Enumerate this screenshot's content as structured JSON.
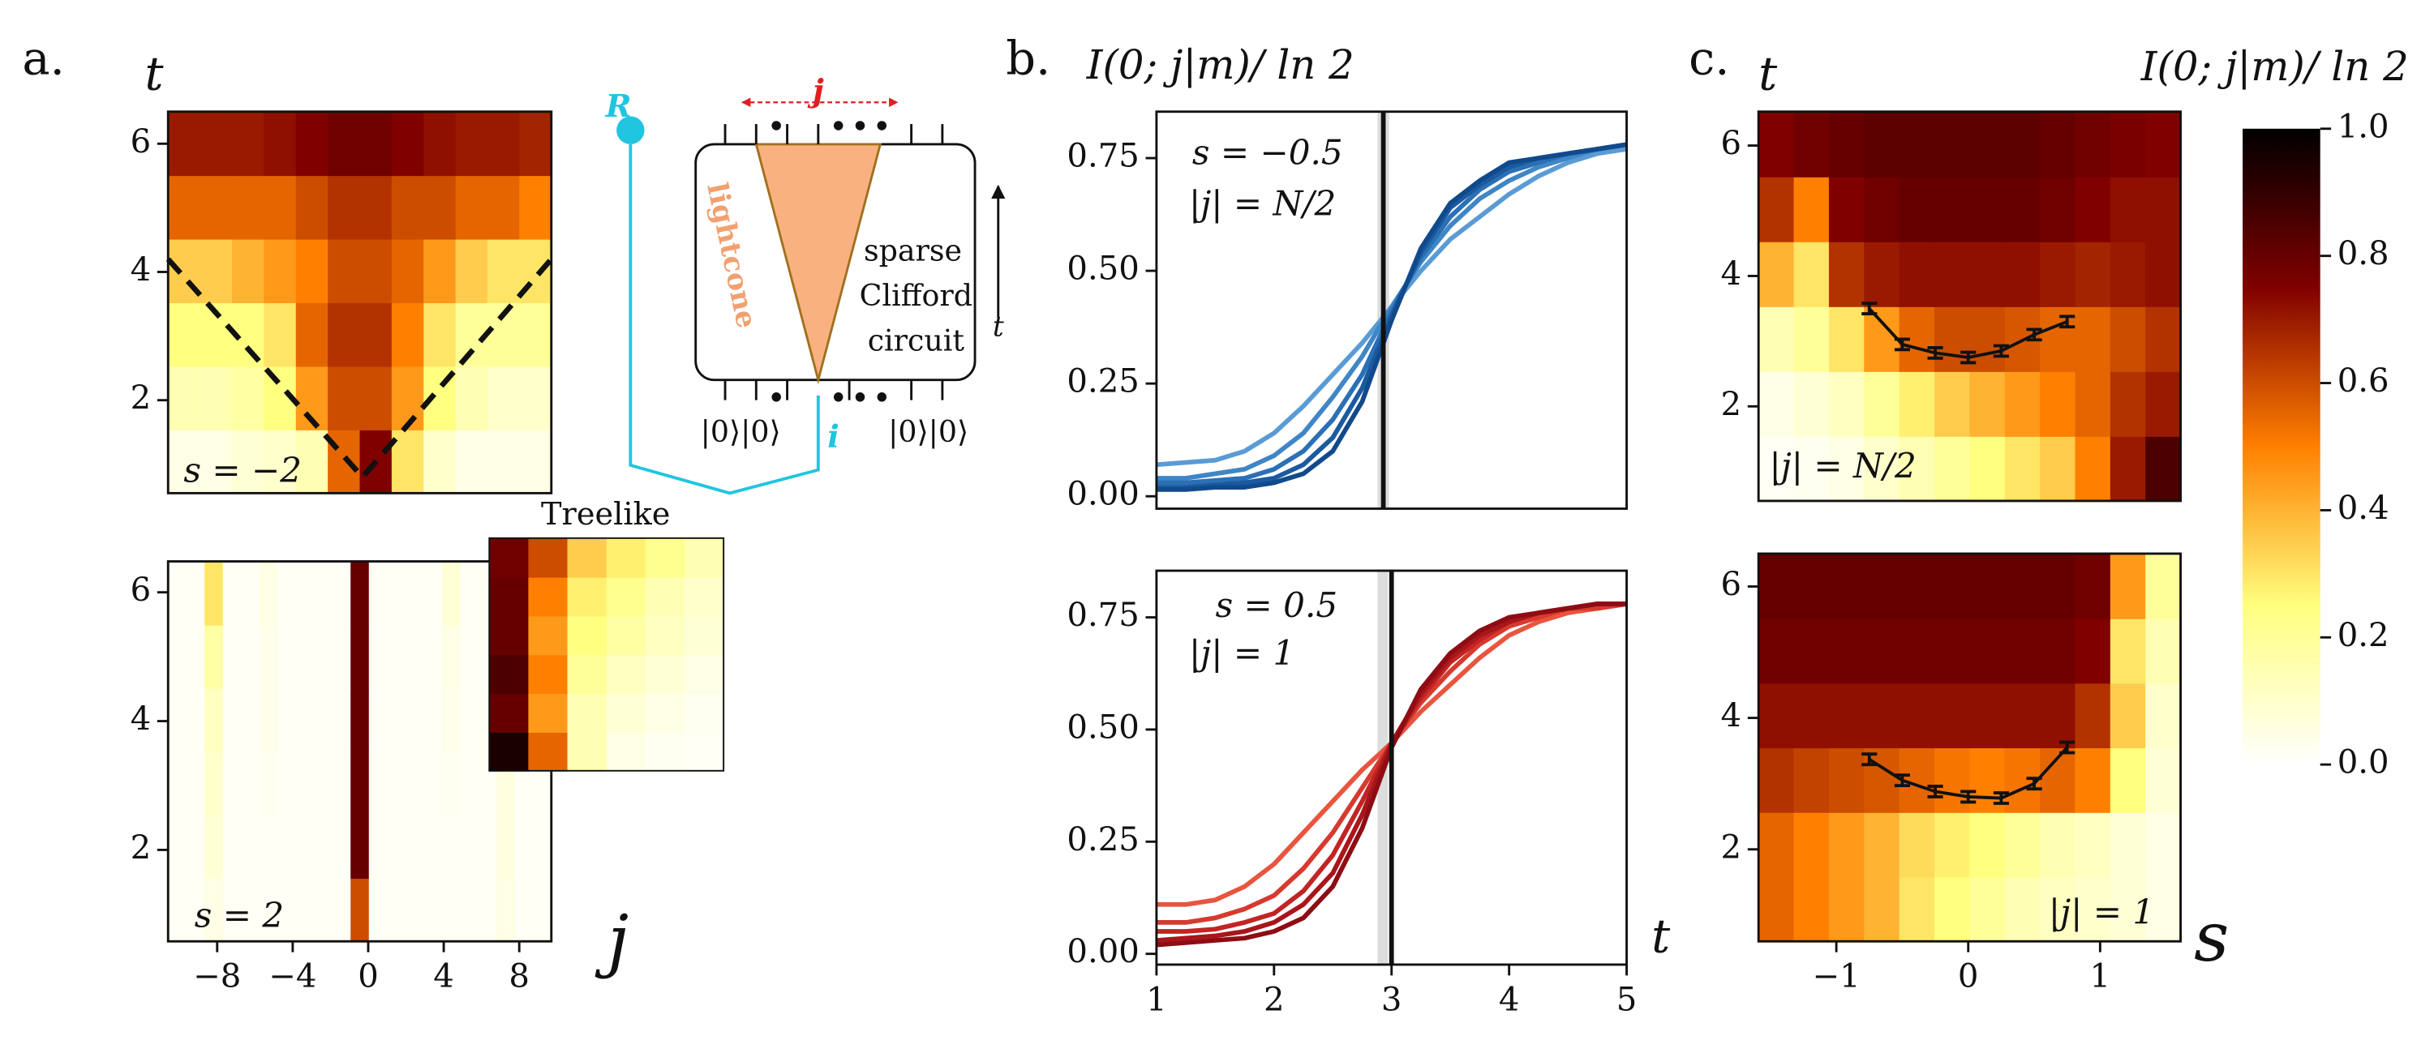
{
  "chart_data": [
    {
      "type": "heatmap",
      "panel_label": "a.",
      "ylabel": "t",
      "annotations": [
        "s = −2"
      ],
      "colormap": "afmhot_r",
      "xlim": [
        -10.6,
        9.7
      ],
      "ylim": [
        0.55,
        6.5
      ],
      "yticks": [
        2,
        4,
        6
      ],
      "values": [
        [
          0.05,
          0.05,
          0.08,
          0.1,
          0.15,
          0.55,
          0.75,
          0.3,
          0.1,
          0.05,
          0.05,
          0.05
        ],
        [
          0.15,
          0.15,
          0.18,
          0.25,
          0.45,
          0.6,
          0.6,
          0.45,
          0.25,
          0.15,
          0.1,
          0.1
        ],
        [
          0.25,
          0.25,
          0.25,
          0.3,
          0.55,
          0.65,
          0.65,
          0.5,
          0.3,
          0.2,
          0.2,
          0.2
        ],
        [
          0.35,
          0.35,
          0.4,
          0.45,
          0.5,
          0.6,
          0.6,
          0.55,
          0.45,
          0.35,
          0.3,
          0.3
        ],
        [
          0.55,
          0.55,
          0.55,
          0.55,
          0.6,
          0.65,
          0.65,
          0.6,
          0.6,
          0.55,
          0.55,
          0.5
        ],
        [
          0.7,
          0.7,
          0.7,
          0.72,
          0.75,
          0.78,
          0.78,
          0.75,
          0.72,
          0.7,
          0.7,
          0.68
        ]
      ],
      "lightcone": {
        "x": [
          -10.6,
          -0.3,
          9.7
        ],
        "t": [
          4.2,
          0.8,
          4.2
        ]
      }
    },
    {
      "type": "heatmap",
      "annotations": [
        "s = 2"
      ],
      "xlabel": "j",
      "colormap": "afmhot_r",
      "xlim": [
        -10.6,
        9.7
      ],
      "ylim": [
        0.58,
        6.48
      ],
      "yticks": [
        2,
        4,
        6
      ],
      "xticks": [
        {
          "value": -8,
          "label": "−8"
        },
        {
          "value": -4,
          "label": "−4"
        },
        0,
        4,
        8
      ],
      "values": [
        [
          0.02,
          0.02,
          0.05,
          0.02,
          0.02,
          0.02,
          0.02,
          0.02,
          0.02,
          0.02,
          0.6,
          0.02,
          0.02,
          0.02,
          0.02,
          0.02,
          0.02,
          0.02,
          0.05,
          0.02,
          0.02
        ],
        [
          0.02,
          0.02,
          0.08,
          0.02,
          0.02,
          0.02,
          0.02,
          0.02,
          0.02,
          0.02,
          0.8,
          0.02,
          0.02,
          0.02,
          0.02,
          0.02,
          0.02,
          0.02,
          0.06,
          0.02,
          0.02
        ],
        [
          0.02,
          0.02,
          0.1,
          0.02,
          0.02,
          0.03,
          0.02,
          0.02,
          0.02,
          0.02,
          0.8,
          0.02,
          0.02,
          0.02,
          0.02,
          0.03,
          0.02,
          0.02,
          0.06,
          0.02,
          0.02
        ],
        [
          0.02,
          0.02,
          0.12,
          0.02,
          0.02,
          0.04,
          0.02,
          0.02,
          0.02,
          0.02,
          0.8,
          0.02,
          0.02,
          0.02,
          0.02,
          0.04,
          0.02,
          0.02,
          0.07,
          0.02,
          0.02
        ],
        [
          0.02,
          0.02,
          0.18,
          0.02,
          0.02,
          0.04,
          0.02,
          0.02,
          0.02,
          0.02,
          0.8,
          0.02,
          0.02,
          0.02,
          0.02,
          0.05,
          0.02,
          0.02,
          0.08,
          0.02,
          0.02
        ],
        [
          0.02,
          0.02,
          0.3,
          0.02,
          0.02,
          0.05,
          0.02,
          0.02,
          0.02,
          0.02,
          0.8,
          0.02,
          0.02,
          0.02,
          0.02,
          0.08,
          0.02,
          0.02,
          0.08,
          0.02,
          0.02
        ]
      ]
    },
    {
      "type": "heatmap",
      "title": "Treelike",
      "colormap": "afmhot_r",
      "values": [
        [
          0.95,
          0.55,
          0.15,
          0.05,
          0.03,
          0.02
        ],
        [
          0.8,
          0.45,
          0.15,
          0.08,
          0.05,
          0.03
        ],
        [
          0.85,
          0.5,
          0.2,
          0.12,
          0.08,
          0.05
        ],
        [
          0.8,
          0.45,
          0.25,
          0.18,
          0.12,
          0.08
        ],
        [
          0.8,
          0.5,
          0.28,
          0.22,
          0.15,
          0.1
        ],
        [
          0.78,
          0.6,
          0.35,
          0.28,
          0.22,
          0.15
        ]
      ]
    },
    {
      "type": "line",
      "panel_label": "b.",
      "ylabel": "I(0; j|m)/ ln 2",
      "annotations": [
        "s = −0.5",
        "|j| = N/2"
      ],
      "xlim": [
        1,
        5
      ],
      "ylim": [
        -0.0275,
        0.853
      ],
      "yticks": [
        {
          "value": 0,
          "label": "0.00"
        },
        {
          "value": 0.25,
          "label": "0.25"
        },
        {
          "value": 0.5,
          "label": "0.50"
        },
        {
          "value": 0.75,
          "label": "0.75"
        }
      ],
      "vline": 2.93,
      "vband": [
        2.88,
        2.98
      ],
      "x": [
        1,
        1.25,
        1.5,
        1.75,
        2,
        2.25,
        2.5,
        2.75,
        3,
        3.25,
        3.5,
        3.75,
        4,
        4.25,
        4.5,
        4.75,
        5
      ],
      "series": [
        {
          "color": "#5a9bd5",
          "values": [
            0.07,
            0.075,
            0.08,
            0.1,
            0.14,
            0.2,
            0.27,
            0.34,
            0.42,
            0.5,
            0.57,
            0.62,
            0.67,
            0.71,
            0.74,
            0.76,
            0.77
          ]
        },
        {
          "color": "#3f86c6",
          "values": [
            0.04,
            0.04,
            0.05,
            0.06,
            0.09,
            0.14,
            0.22,
            0.31,
            0.42,
            0.52,
            0.6,
            0.66,
            0.7,
            0.73,
            0.75,
            0.77,
            0.78
          ]
        },
        {
          "color": "#2b70b5",
          "values": [
            0.03,
            0.03,
            0.035,
            0.04,
            0.06,
            0.1,
            0.17,
            0.27,
            0.41,
            0.53,
            0.62,
            0.68,
            0.72,
            0.74,
            0.76,
            0.77,
            0.78
          ]
        },
        {
          "color": "#1c5aa0",
          "values": [
            0.02,
            0.02,
            0.025,
            0.03,
            0.04,
            0.07,
            0.13,
            0.24,
            0.4,
            0.54,
            0.64,
            0.69,
            0.73,
            0.75,
            0.76,
            0.77,
            0.78
          ]
        },
        {
          "color": "#114a8c",
          "values": [
            0.015,
            0.015,
            0.02,
            0.02,
            0.03,
            0.05,
            0.1,
            0.21,
            0.39,
            0.55,
            0.65,
            0.7,
            0.74,
            0.75,
            0.76,
            0.77,
            0.78
          ]
        }
      ]
    },
    {
      "type": "line",
      "xlabel": "t",
      "annotations": [
        "s = 0.5",
        "|j| = 1"
      ],
      "xlim": [
        1,
        5
      ],
      "ylim": [
        -0.024,
        0.854
      ],
      "xticks": [
        1,
        2,
        3,
        4,
        5
      ],
      "yticks": [
        {
          "value": 0,
          "label": "0.00"
        },
        {
          "value": 0.25,
          "label": "0.25"
        },
        {
          "value": 0.5,
          "label": "0.50"
        },
        {
          "value": 0.75,
          "label": "0.75"
        }
      ],
      "vline": 3.0,
      "vband": [
        2.88,
        2.97
      ],
      "x": [
        1,
        1.25,
        1.5,
        1.75,
        2,
        2.25,
        2.5,
        2.75,
        3,
        3.25,
        3.5,
        3.75,
        4,
        4.25,
        4.5,
        4.75,
        5
      ],
      "series": [
        {
          "color": "#e8553f",
          "values": [
            0.11,
            0.11,
            0.12,
            0.15,
            0.2,
            0.27,
            0.34,
            0.41,
            0.47,
            0.54,
            0.6,
            0.66,
            0.71,
            0.74,
            0.76,
            0.77,
            0.78
          ]
        },
        {
          "color": "#d63a2f",
          "values": [
            0.07,
            0.07,
            0.08,
            0.1,
            0.13,
            0.19,
            0.27,
            0.37,
            0.47,
            0.56,
            0.63,
            0.69,
            0.73,
            0.75,
            0.77,
            0.77,
            0.78
          ]
        },
        {
          "color": "#c22424",
          "values": [
            0.05,
            0.05,
            0.055,
            0.07,
            0.09,
            0.14,
            0.22,
            0.34,
            0.47,
            0.57,
            0.65,
            0.7,
            0.74,
            0.76,
            0.77,
            0.78,
            0.78
          ]
        },
        {
          "color": "#a8161b",
          "values": [
            0.03,
            0.035,
            0.04,
            0.05,
            0.07,
            0.11,
            0.18,
            0.31,
            0.47,
            0.58,
            0.66,
            0.71,
            0.74,
            0.76,
            0.77,
            0.78,
            0.78
          ]
        },
        {
          "color": "#8e0d14",
          "values": [
            0.02,
            0.025,
            0.03,
            0.035,
            0.05,
            0.08,
            0.15,
            0.28,
            0.46,
            0.59,
            0.67,
            0.72,
            0.75,
            0.76,
            0.77,
            0.78,
            0.78
          ]
        }
      ]
    },
    {
      "type": "heatmap",
      "panel_label": "c.",
      "ylabel": "t",
      "annotations": [
        "|j| = N/2"
      ],
      "colormap": "afmhot_r",
      "xlim": [
        -1.59,
        1.61
      ],
      "ylim": [
        0.55,
        6.52
      ],
      "yticks": [
        2,
        4,
        6
      ],
      "values": [
        [
          0.02,
          0.03,
          0.05,
          0.1,
          0.15,
          0.2,
          0.25,
          0.3,
          0.35,
          0.5,
          0.7,
          0.85
        ],
        [
          0.05,
          0.08,
          0.12,
          0.2,
          0.28,
          0.35,
          0.4,
          0.45,
          0.5,
          0.55,
          0.65,
          0.7
        ],
        [
          0.15,
          0.2,
          0.3,
          0.45,
          0.55,
          0.6,
          0.6,
          0.58,
          0.55,
          0.55,
          0.6,
          0.65
        ],
        [
          0.4,
          0.3,
          0.65,
          0.7,
          0.72,
          0.72,
          0.72,
          0.72,
          0.7,
          0.68,
          0.7,
          0.72
        ],
        [
          0.65,
          0.5,
          0.75,
          0.78,
          0.8,
          0.8,
          0.8,
          0.8,
          0.78,
          0.75,
          0.72,
          0.72
        ],
        [
          0.75,
          0.78,
          0.8,
          0.82,
          0.82,
          0.82,
          0.82,
          0.82,
          0.8,
          0.78,
          0.76,
          0.75
        ]
      ],
      "errorbars": {
        "x": [
          -0.75,
          -0.5,
          -0.25,
          0,
          0.25,
          0.5,
          0.75
        ],
        "values": [
          3.5,
          2.95,
          2.82,
          2.75,
          2.85,
          3.1,
          3.3
        ],
        "errors": [
          0.08,
          0.08,
          0.08,
          0.08,
          0.08,
          0.08,
          0.08
        ]
      }
    },
    {
      "type": "heatmap",
      "xlabel": "s",
      "annotations": [
        "|j| = 1"
      ],
      "colormap": "afmhot_r",
      "xlim": [
        -1.59,
        1.61
      ],
      "ylim": [
        0.6,
        6.5
      ],
      "yticks": [
        2,
        4,
        6
      ],
      "xticks": [
        {
          "value": -1,
          "label": "−1"
        },
        0,
        1
      ],
      "values": [
        [
          0.55,
          0.5,
          0.45,
          0.4,
          0.3,
          0.25,
          0.2,
          0.15,
          0.12,
          0.1,
          0.08,
          0.05
        ],
        [
          0.55,
          0.5,
          0.45,
          0.4,
          0.32,
          0.28,
          0.25,
          0.2,
          0.15,
          0.12,
          0.08,
          0.05
        ],
        [
          0.65,
          0.62,
          0.6,
          0.58,
          0.55,
          0.52,
          0.5,
          0.52,
          0.55,
          0.5,
          0.25,
          0.08
        ],
        [
          0.72,
          0.72,
          0.72,
          0.72,
          0.72,
          0.72,
          0.72,
          0.72,
          0.72,
          0.65,
          0.35,
          0.1
        ],
        [
          0.78,
          0.78,
          0.78,
          0.78,
          0.78,
          0.78,
          0.78,
          0.78,
          0.78,
          0.75,
          0.3,
          0.15
        ],
        [
          0.8,
          0.8,
          0.8,
          0.8,
          0.8,
          0.8,
          0.8,
          0.8,
          0.8,
          0.78,
          0.45,
          0.2
        ]
      ],
      "errorbars": {
        "x": [
          -0.75,
          -0.5,
          -0.25,
          0,
          0.25,
          0.5,
          0.75
        ],
        "values": [
          3.37,
          3.05,
          2.88,
          2.8,
          2.78,
          3.0,
          3.55
        ],
        "errors": [
          0.08,
          0.08,
          0.08,
          0.08,
          0.08,
          0.08,
          0.08
        ]
      }
    },
    {
      "type": "colorbar",
      "title": "I(0; j|m)/ ln 2",
      "colormap": "afmhot_r",
      "ylim": [
        0,
        1
      ],
      "yticks": [
        {
          "value": 0,
          "label": "0.0"
        },
        {
          "value": 0.2,
          "label": "0.2"
        },
        {
          "value": 0.4,
          "label": "0.4"
        },
        {
          "value": 0.6,
          "label": "0.6"
        },
        {
          "value": 0.8,
          "label": "0.8"
        },
        {
          "value": 1,
          "label": "1.0"
        }
      ]
    }
  ],
  "diagram": {
    "R": "R",
    "j": "j",
    "lightcone": "lightcone",
    "circuit": [
      "sparse",
      "Clifford",
      "circuit"
    ],
    "t": "t",
    "kets_left": "|0⟩|0⟩",
    "kets_right": "|0⟩|0⟩",
    "i": "i"
  }
}
